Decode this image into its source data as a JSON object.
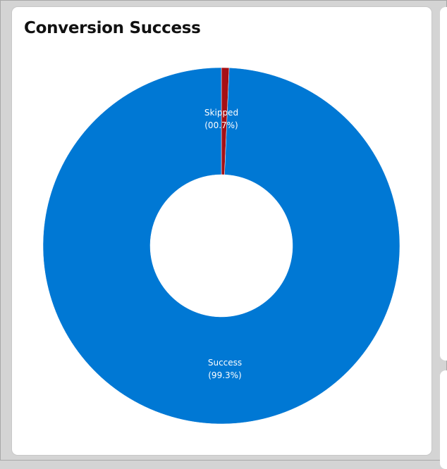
{
  "chart_data": {
    "type": "pie",
    "variant": "donut",
    "title": "Conversion Success",
    "slices": [
      {
        "name": "Skipped",
        "value": 0.7,
        "percent_label": "(00.7%)",
        "color": "#a50f15"
      },
      {
        "name": "Success",
        "value": 99.3,
        "percent_label": "(99.3%)",
        "color": "#0078d4"
      }
    ],
    "legend": "none",
    "data_labels": "inside"
  }
}
